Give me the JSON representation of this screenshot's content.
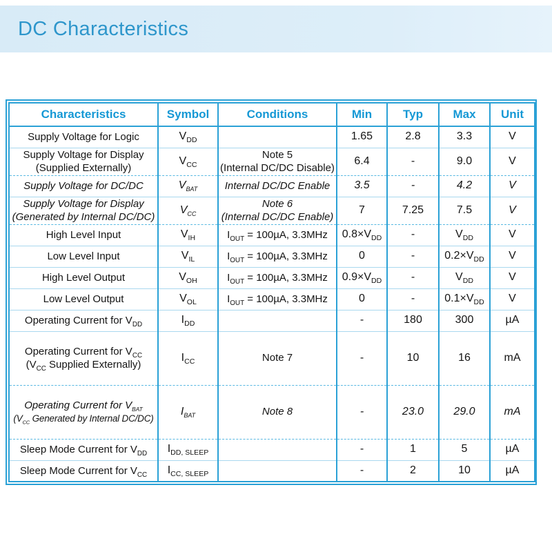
{
  "title": "DC Characteristics",
  "colors": {
    "title_text": "#2e96cb",
    "title_bar_bg": "#dcedf8",
    "header_text": "#1598d5",
    "table_border": "#2ba1d6",
    "row_line": "#a9d8ef",
    "dashed_line": "#57b8e2",
    "body_text": "#141414"
  },
  "table": {
    "columns": [
      "Characteristics",
      "Symbol",
      "Conditions",
      "Min",
      "Typ",
      "Max",
      "Unit"
    ],
    "rows": [
      {
        "characteristics": "Supply Voltage for Logic",
        "symbol": "V~DD~",
        "conditions": "",
        "min": "1.65",
        "typ": "2.8",
        "max": "3.3",
        "unit": "V"
      },
      {
        "characteristics": "Supply Voltage for Display\n(Supplied Externally)",
        "symbol": "V~CC~",
        "conditions": "Note 5\n(Internal DC/DC Disable)",
        "min": "6.4",
        "typ": "-",
        "max": "9.0",
        "unit": "V"
      },
      {
        "characteristics": "Supply Voltage for DC/DC",
        "symbol": "V~BAT~",
        "conditions": "Internal DC/DC Enable",
        "min": "3.5",
        "typ": "-",
        "max": "4.2",
        "unit": "V",
        "italic": "all",
        "dashed_top": true
      },
      {
        "characteristics": "Supply Voltage for Display\n(Generated by Internal DC/DC)",
        "symbol": "V~CC~",
        "conditions": "Note 6\n(Internal DC/DC Enable)",
        "min": "7",
        "typ": "7.25",
        "max": "7.5",
        "unit": "V",
        "italic": "labels"
      },
      {
        "characteristics": "High Level Input",
        "symbol": "V~IH~",
        "conditions": "I~OUT~ = 100µA, 3.3MHz",
        "min": "0.8×V~DD~",
        "typ": "-",
        "max": "V~DD~",
        "unit": "V",
        "dashed_top": true
      },
      {
        "characteristics": "Low Level Input",
        "symbol": "V~IL~",
        "conditions": "I~OUT~ = 100µA, 3.3MHz",
        "min": "0",
        "typ": "-",
        "max": "0.2×V~DD~",
        "unit": "V"
      },
      {
        "characteristics": "High Level Output",
        "symbol": "V~OH~",
        "conditions": "I~OUT~ = 100µA, 3.3MHz",
        "min": "0.9×V~DD~",
        "typ": "-",
        "max": "V~DD~",
        "unit": "V"
      },
      {
        "characteristics": "Low Level Output",
        "symbol": "V~OL~",
        "conditions": "I~OUT~ = 100µA, 3.3MHz",
        "min": "0",
        "typ": "-",
        "max": "0.1×V~DD~",
        "unit": "V"
      },
      {
        "characteristics": "Operating Current for V~DD~",
        "symbol": "I~DD~",
        "conditions": "",
        "min": "-",
        "typ": "180",
        "max": "300",
        "unit": "µA"
      },
      {
        "characteristics": "Operating Current for V~CC~\n(V~CC~ Supplied Externally)",
        "symbol": "I~CC~",
        "conditions": "Note 7",
        "min": "-",
        "typ": "10",
        "max": "16",
        "unit": "mA",
        "tall": true
      },
      {
        "characteristics": "Operating Current for V~BAT~\n(V~CC~ Generated by Internal DC/DC)",
        "symbol": "I~BAT~",
        "conditions": "Note 8",
        "min": "-",
        "typ": "23.0",
        "max": "29.0",
        "unit": "mA",
        "italic": "all",
        "dashed_top": true,
        "tall": true
      },
      {
        "characteristics": "Sleep Mode Current for V~DD~",
        "symbol": "I~DD, SLEEP~",
        "conditions": "",
        "min": "-",
        "typ": "1",
        "max": "5",
        "unit": "µA",
        "dashed_top": true
      },
      {
        "characteristics": "Sleep Mode Current for V~CC~",
        "symbol": "I~CC, SLEEP~",
        "conditions": "",
        "min": "-",
        "typ": "2",
        "max": "10",
        "unit": "µA"
      }
    ]
  }
}
